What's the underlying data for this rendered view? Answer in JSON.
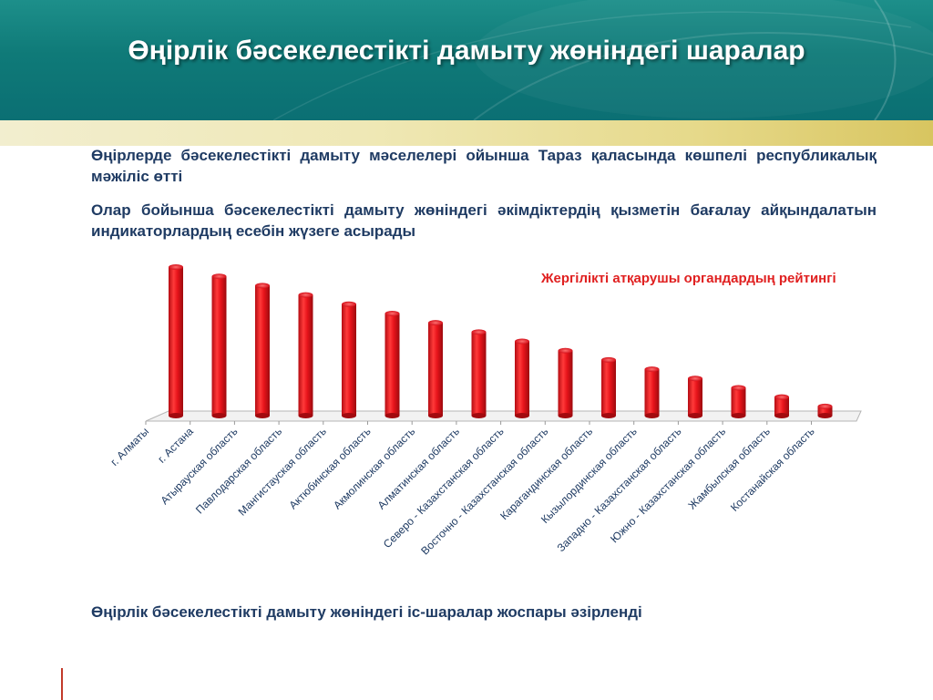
{
  "slide": {
    "title": "Өңірлік бәсекелестікті дамыту жөніндегі шаралар",
    "paragraph_1": "Өңірлерде бәсекелестікті дамыту мәселелері ойынша Тараз қаласында көшпелі республикалық мәжіліс өтті",
    "paragraph_2": " Олар бойынша бәсекелестікті дамыту жөніндегі әкімдіктердің қызметін бағалау айқындалатын индикаторлардың есебін жүзеге асырады",
    "paragraph_3": "Өңірлік бәсекелестікті дамыту жөніндегі іс-шаралар жоспары әзірленді"
  },
  "colors": {
    "bar": "#e8141b",
    "bar_dark": "#a20a0f",
    "bar_light": "#ff6a6a",
    "accent_title": "#e02020",
    "text": "#1f3b63"
  },
  "chart_data": {
    "type": "bar",
    "title": "Жергілікті атқарушы органдардың рейтингі",
    "categories": [
      "г. Алматы",
      "г. Астана",
      "Атырауская область",
      "Павлодарская область",
      "Мангистауская область",
      "Актюбинская область",
      "Акмолинская область",
      "Алматинская область",
      "Северо - Казахстанская область",
      "Восточно - Казахстанская область",
      "Карагандинская область",
      "Кызылординская область",
      "Западно - Казахстанская область",
      "Южно - Казахстанская область",
      "Жамбылская область",
      "Костанайская область"
    ],
    "values": [
      16,
      15,
      14,
      13,
      12,
      11,
      10,
      9,
      8,
      7,
      6,
      5,
      4,
      3,
      2,
      1
    ],
    "ylim": [
      0,
      16
    ],
    "grid": false,
    "legend": "none"
  }
}
